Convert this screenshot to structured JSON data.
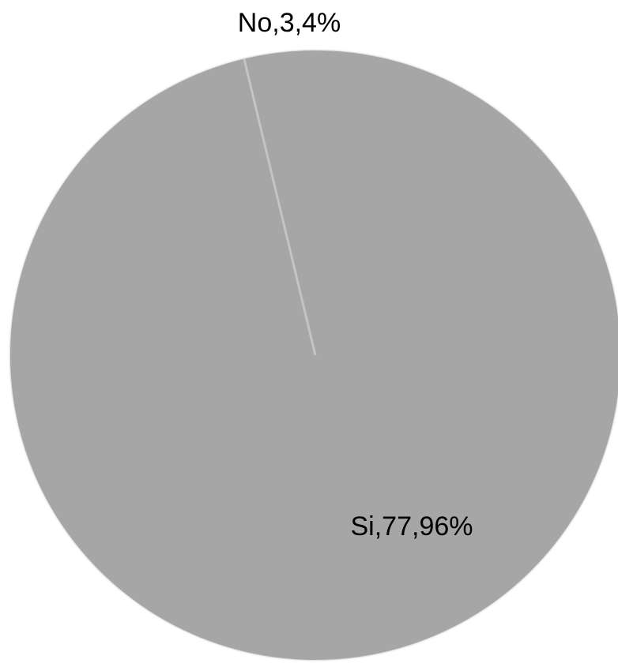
{
  "chart_data": {
    "type": "pie",
    "slices": [
      {
        "label": "No,  3,  4% ",
        "value": 3,
        "percent": 4,
        "color": "#bdbdbd"
      },
      {
        "label": "Si,  77,  96% ",
        "value": 77,
        "percent": 96,
        "color": "#a6a6a6"
      }
    ],
    "title": "",
    "legend": "none"
  },
  "raw_labels": {
    "no": "No,3,4%",
    "si": "Si,77,96%"
  }
}
